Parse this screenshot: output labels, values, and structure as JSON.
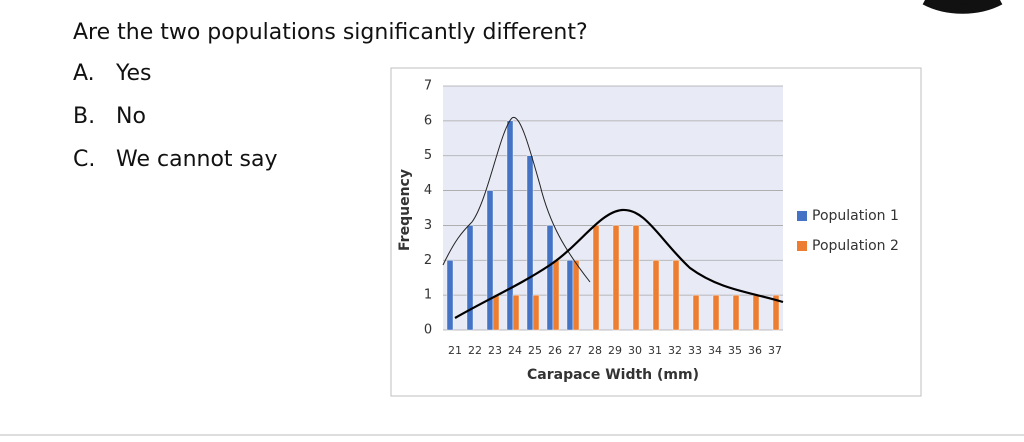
{
  "question": "Are the two populations significantly different?",
  "options": [
    {
      "letter": "A.",
      "text": "Yes"
    },
    {
      "letter": "B.",
      "text": "No"
    },
    {
      "letter": "C.",
      "text": "We cannot say"
    }
  ],
  "chart_data": {
    "type": "bar",
    "x_label": "Carapace Width (mm)",
    "y_label": "Frequency",
    "categories": [
      "21",
      "22",
      "23",
      "24",
      "25",
      "26",
      "27",
      "28",
      "29",
      "30",
      "31",
      "32",
      "33",
      "34",
      "35",
      "36",
      "37"
    ],
    "series": [
      {
        "name": "Population 1",
        "color": "#4472c4",
        "values": [
          2,
          3,
          4,
          6,
          5,
          3,
          2,
          0,
          0,
          0,
          0,
          0,
          0,
          0,
          0,
          0,
          0
        ]
      },
      {
        "name": "Population 2",
        "color": "#ed7d31",
        "values": [
          0,
          0,
          1,
          1,
          1,
          2,
          2,
          3,
          3,
          3,
          2,
          2,
          1,
          1,
          1,
          1,
          1
        ]
      }
    ],
    "ylim": [
      0,
      7
    ],
    "yticks": [
      0,
      1,
      2,
      3,
      4,
      5,
      6,
      7
    ],
    "grid": true,
    "legend": "right"
  }
}
